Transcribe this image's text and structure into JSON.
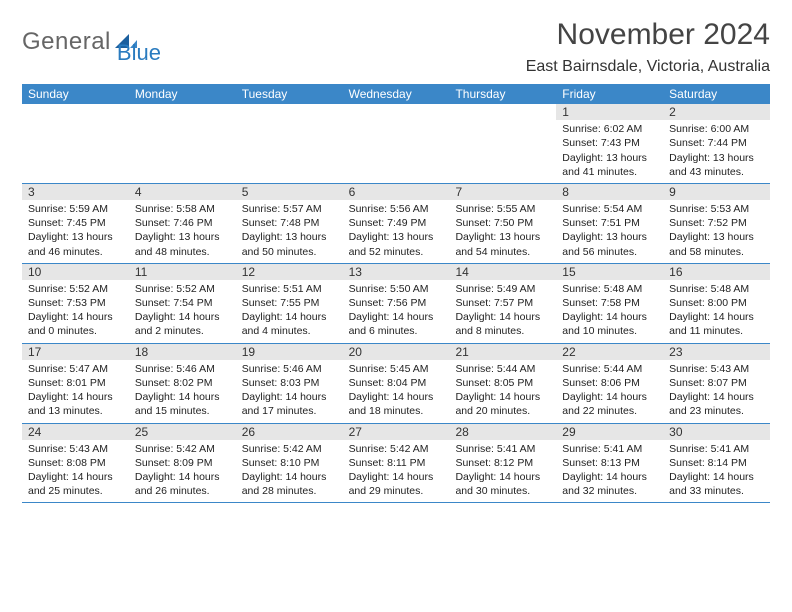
{
  "brand": {
    "general": "General",
    "blue": "Blue"
  },
  "title": {
    "month": "November 2024",
    "location": "East Bairnsdale, Victoria, Australia"
  },
  "colors": {
    "header_bg": "#3b87c8",
    "header_text": "#ffffff",
    "band_bg": "#e6e6e6",
    "divider": "#3b87c8",
    "text": "#222222"
  },
  "day_labels": [
    "Sunday",
    "Monday",
    "Tuesday",
    "Wednesday",
    "Thursday",
    "Friday",
    "Saturday"
  ],
  "weeks": [
    [
      {
        "blank": true
      },
      {
        "blank": true
      },
      {
        "blank": true
      },
      {
        "blank": true
      },
      {
        "blank": true
      },
      {
        "day": "1",
        "sunrise": "Sunrise: 6:02 AM",
        "sunset": "Sunset: 7:43 PM",
        "daylight1": "Daylight: 13 hours",
        "daylight2": "and 41 minutes."
      },
      {
        "day": "2",
        "sunrise": "Sunrise: 6:00 AM",
        "sunset": "Sunset: 7:44 PM",
        "daylight1": "Daylight: 13 hours",
        "daylight2": "and 43 minutes."
      }
    ],
    [
      {
        "day": "3",
        "sunrise": "Sunrise: 5:59 AM",
        "sunset": "Sunset: 7:45 PM",
        "daylight1": "Daylight: 13 hours",
        "daylight2": "and 46 minutes."
      },
      {
        "day": "4",
        "sunrise": "Sunrise: 5:58 AM",
        "sunset": "Sunset: 7:46 PM",
        "daylight1": "Daylight: 13 hours",
        "daylight2": "and 48 minutes."
      },
      {
        "day": "5",
        "sunrise": "Sunrise: 5:57 AM",
        "sunset": "Sunset: 7:48 PM",
        "daylight1": "Daylight: 13 hours",
        "daylight2": "and 50 minutes."
      },
      {
        "day": "6",
        "sunrise": "Sunrise: 5:56 AM",
        "sunset": "Sunset: 7:49 PM",
        "daylight1": "Daylight: 13 hours",
        "daylight2": "and 52 minutes."
      },
      {
        "day": "7",
        "sunrise": "Sunrise: 5:55 AM",
        "sunset": "Sunset: 7:50 PM",
        "daylight1": "Daylight: 13 hours",
        "daylight2": "and 54 minutes."
      },
      {
        "day": "8",
        "sunrise": "Sunrise: 5:54 AM",
        "sunset": "Sunset: 7:51 PM",
        "daylight1": "Daylight: 13 hours",
        "daylight2": "and 56 minutes."
      },
      {
        "day": "9",
        "sunrise": "Sunrise: 5:53 AM",
        "sunset": "Sunset: 7:52 PM",
        "daylight1": "Daylight: 13 hours",
        "daylight2": "and 58 minutes."
      }
    ],
    [
      {
        "day": "10",
        "sunrise": "Sunrise: 5:52 AM",
        "sunset": "Sunset: 7:53 PM",
        "daylight1": "Daylight: 14 hours",
        "daylight2": "and 0 minutes."
      },
      {
        "day": "11",
        "sunrise": "Sunrise: 5:52 AM",
        "sunset": "Sunset: 7:54 PM",
        "daylight1": "Daylight: 14 hours",
        "daylight2": "and 2 minutes."
      },
      {
        "day": "12",
        "sunrise": "Sunrise: 5:51 AM",
        "sunset": "Sunset: 7:55 PM",
        "daylight1": "Daylight: 14 hours",
        "daylight2": "and 4 minutes."
      },
      {
        "day": "13",
        "sunrise": "Sunrise: 5:50 AM",
        "sunset": "Sunset: 7:56 PM",
        "daylight1": "Daylight: 14 hours",
        "daylight2": "and 6 minutes."
      },
      {
        "day": "14",
        "sunrise": "Sunrise: 5:49 AM",
        "sunset": "Sunset: 7:57 PM",
        "daylight1": "Daylight: 14 hours",
        "daylight2": "and 8 minutes."
      },
      {
        "day": "15",
        "sunrise": "Sunrise: 5:48 AM",
        "sunset": "Sunset: 7:58 PM",
        "daylight1": "Daylight: 14 hours",
        "daylight2": "and 10 minutes."
      },
      {
        "day": "16",
        "sunrise": "Sunrise: 5:48 AM",
        "sunset": "Sunset: 8:00 PM",
        "daylight1": "Daylight: 14 hours",
        "daylight2": "and 11 minutes."
      }
    ],
    [
      {
        "day": "17",
        "sunrise": "Sunrise: 5:47 AM",
        "sunset": "Sunset: 8:01 PM",
        "daylight1": "Daylight: 14 hours",
        "daylight2": "and 13 minutes."
      },
      {
        "day": "18",
        "sunrise": "Sunrise: 5:46 AM",
        "sunset": "Sunset: 8:02 PM",
        "daylight1": "Daylight: 14 hours",
        "daylight2": "and 15 minutes."
      },
      {
        "day": "19",
        "sunrise": "Sunrise: 5:46 AM",
        "sunset": "Sunset: 8:03 PM",
        "daylight1": "Daylight: 14 hours",
        "daylight2": "and 17 minutes."
      },
      {
        "day": "20",
        "sunrise": "Sunrise: 5:45 AM",
        "sunset": "Sunset: 8:04 PM",
        "daylight1": "Daylight: 14 hours",
        "daylight2": "and 18 minutes."
      },
      {
        "day": "21",
        "sunrise": "Sunrise: 5:44 AM",
        "sunset": "Sunset: 8:05 PM",
        "daylight1": "Daylight: 14 hours",
        "daylight2": "and 20 minutes."
      },
      {
        "day": "22",
        "sunrise": "Sunrise: 5:44 AM",
        "sunset": "Sunset: 8:06 PM",
        "daylight1": "Daylight: 14 hours",
        "daylight2": "and 22 minutes."
      },
      {
        "day": "23",
        "sunrise": "Sunrise: 5:43 AM",
        "sunset": "Sunset: 8:07 PM",
        "daylight1": "Daylight: 14 hours",
        "daylight2": "and 23 minutes."
      }
    ],
    [
      {
        "day": "24",
        "sunrise": "Sunrise: 5:43 AM",
        "sunset": "Sunset: 8:08 PM",
        "daylight1": "Daylight: 14 hours",
        "daylight2": "and 25 minutes."
      },
      {
        "day": "25",
        "sunrise": "Sunrise: 5:42 AM",
        "sunset": "Sunset: 8:09 PM",
        "daylight1": "Daylight: 14 hours",
        "daylight2": "and 26 minutes."
      },
      {
        "day": "26",
        "sunrise": "Sunrise: 5:42 AM",
        "sunset": "Sunset: 8:10 PM",
        "daylight1": "Daylight: 14 hours",
        "daylight2": "and 28 minutes."
      },
      {
        "day": "27",
        "sunrise": "Sunrise: 5:42 AM",
        "sunset": "Sunset: 8:11 PM",
        "daylight1": "Daylight: 14 hours",
        "daylight2": "and 29 minutes."
      },
      {
        "day": "28",
        "sunrise": "Sunrise: 5:41 AM",
        "sunset": "Sunset: 8:12 PM",
        "daylight1": "Daylight: 14 hours",
        "daylight2": "and 30 minutes."
      },
      {
        "day": "29",
        "sunrise": "Sunrise: 5:41 AM",
        "sunset": "Sunset: 8:13 PM",
        "daylight1": "Daylight: 14 hours",
        "daylight2": "and 32 minutes."
      },
      {
        "day": "30",
        "sunrise": "Sunrise: 5:41 AM",
        "sunset": "Sunset: 8:14 PM",
        "daylight1": "Daylight: 14 hours",
        "daylight2": "and 33 minutes."
      }
    ]
  ]
}
